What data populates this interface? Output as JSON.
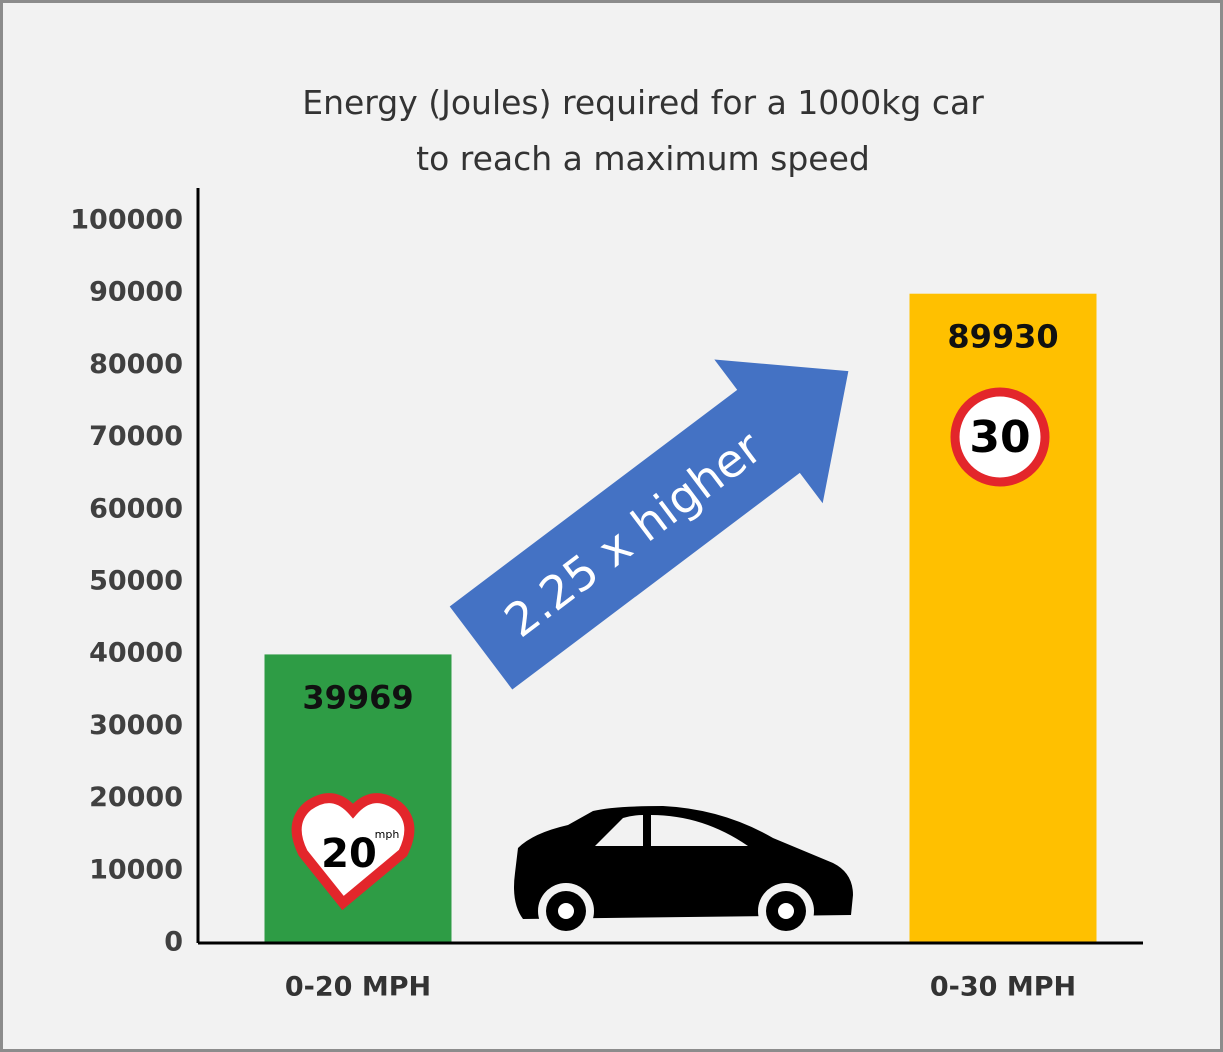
{
  "chart_data": {
    "type": "bar",
    "title": "Energy (Joules) required for a 1000kg car to reach a maximum speed",
    "categories": [
      "0-20 MPH",
      "0-30 MPH"
    ],
    "values": [
      39969,
      89930
    ],
    "colors": [
      "#2e9c45",
      "#ffc000"
    ],
    "ylim": [
      0,
      100000
    ],
    "yticks": [
      0,
      10000,
      20000,
      30000,
      40000,
      50000,
      60000,
      70000,
      80000,
      90000,
      100000
    ],
    "grid": false,
    "annotation": "2.25 x higher",
    "badges": [
      {
        "text": "20",
        "unit": "mph"
      },
      {
        "text": "30"
      }
    ]
  }
}
